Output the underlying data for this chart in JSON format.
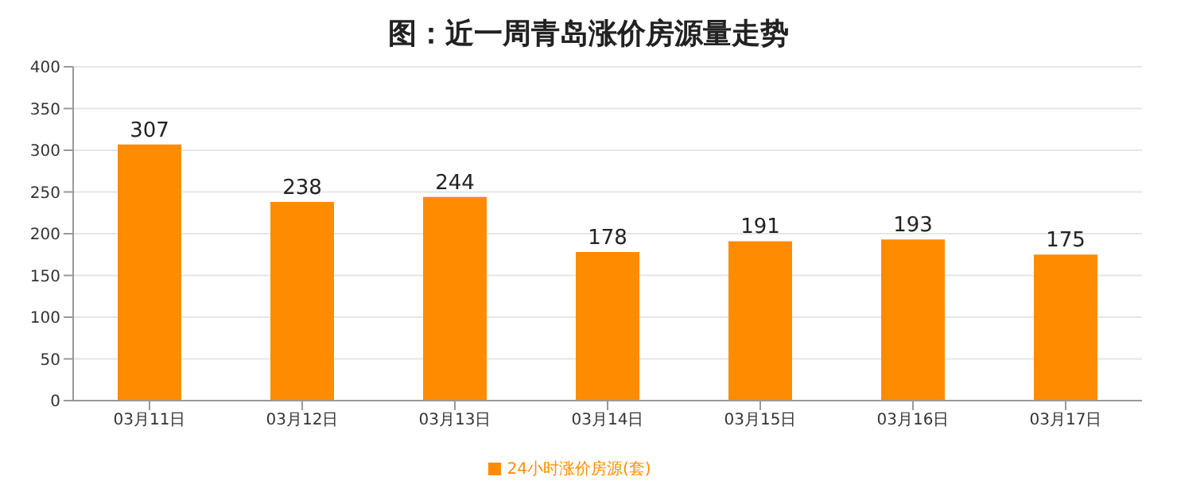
{
  "chart_data": {
    "type": "bar",
    "title": "图：近一周青岛涨价房源量走势",
    "categories": [
      "03月11日",
      "03月12日",
      "03月13日",
      "03月14日",
      "03月15日",
      "03月16日",
      "03月17日"
    ],
    "series": [
      {
        "name": "24小时涨价房源(套)",
        "color": "#ff8c00",
        "values": [
          307,
          238,
          244,
          178,
          191,
          193,
          175
        ]
      }
    ],
    "ylim": [
      0,
      400
    ],
    "yticks": [
      0,
      50,
      100,
      150,
      200,
      250,
      300,
      350,
      400
    ],
    "grid": "y",
    "legend": "bottom",
    "data_labels": true
  }
}
